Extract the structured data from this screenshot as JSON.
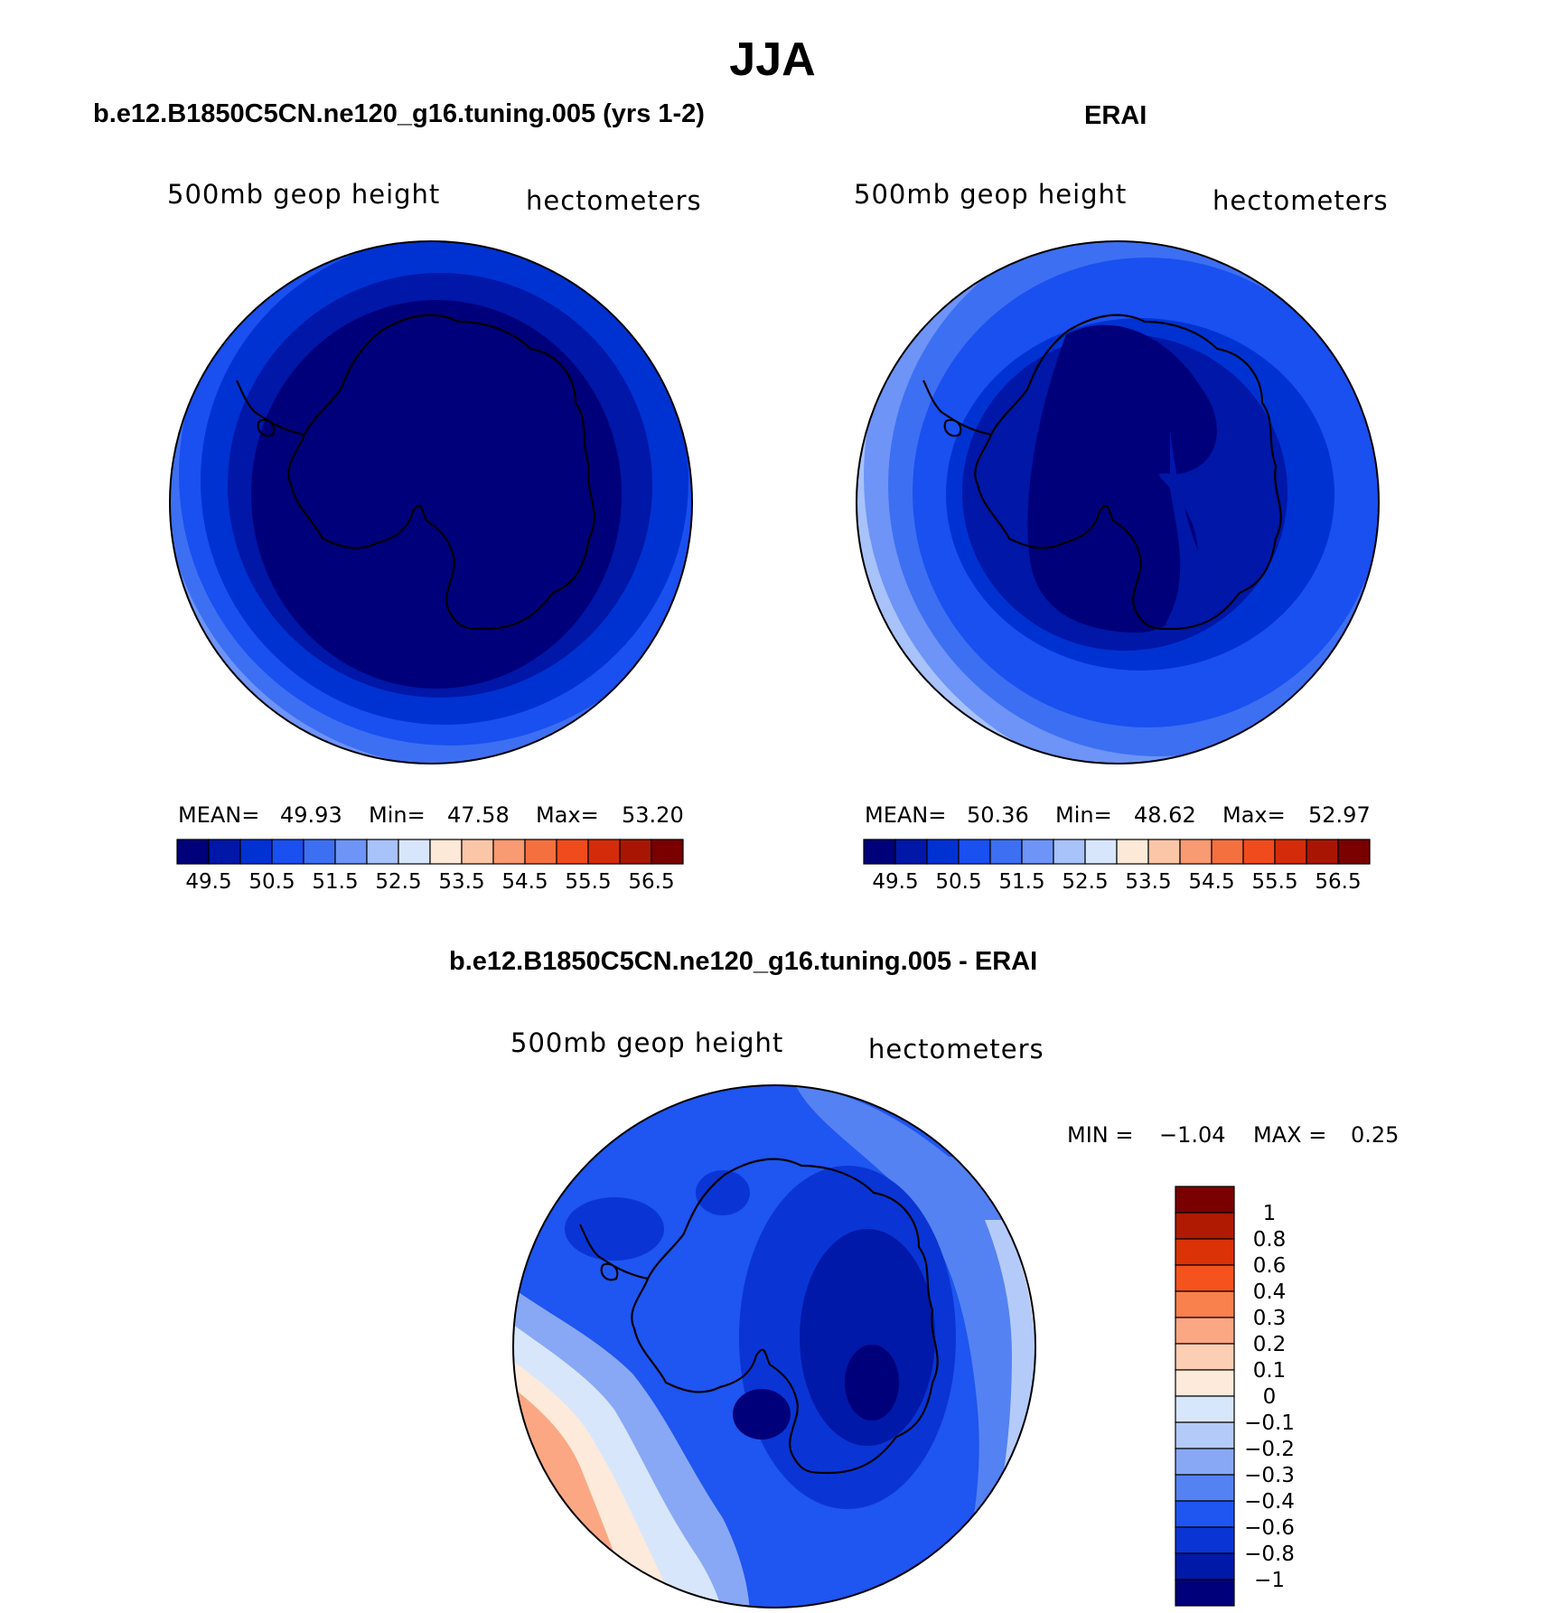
{
  "figure": {
    "title": "JJA"
  },
  "panels": [
    {
      "title": "b.e12.B1850C5CN.ne120_g16.tuning.005 (yrs 1-2)",
      "left_label": "500mb geop height",
      "right_label": "hectometers",
      "stats": {
        "mean_label": "MEAN=",
        "mean": "49.93",
        "min_label": "Min=",
        "min": "47.58",
        "max_label": "Max=",
        "max": "53.20"
      }
    },
    {
      "title": "ERAI",
      "left_label": "500mb geop height",
      "right_label": "hectometers",
      "stats": {
        "mean_label": "MEAN=",
        "mean": "50.36",
        "min_label": "Min=",
        "min": "48.62",
        "max_label": "Max=",
        "max": "52.97"
      }
    },
    {
      "title": "b.e12.B1850C5CN.ne120_g16.tuning.005 - ERAI",
      "left_label": "500mb geop height",
      "right_label": "hectometers",
      "stats": {
        "min_label": "MIN =",
        "min": "−1.04",
        "max_label": "MAX =",
        "max": "0.25"
      }
    }
  ],
  "colorbar_horizontal": {
    "tick_labels": [
      "49.5",
      "50.5",
      "51.5",
      "52.5",
      "53.5",
      "54.5",
      "55.5",
      "56.5"
    ],
    "colors": [
      "#00007a",
      "#0017a8",
      "#0032d2",
      "#1a4ff0",
      "#3d6ff2",
      "#6d94f6",
      "#a8c2fa",
      "#d8e6fb",
      "#fde9d8",
      "#fbc6a8",
      "#f89a72",
      "#f5703f",
      "#f04b1c",
      "#d42c0a",
      "#a81603",
      "#7a0000"
    ]
  },
  "colorbar_vertical": {
    "tick_labels": [
      "1",
      "0.8",
      "0.6",
      "0.4",
      "0.3",
      "0.2",
      "0.1",
      "0",
      "−0.1",
      "−0.2",
      "−0.3",
      "−0.4",
      "−0.6",
      "−0.8",
      "−1"
    ],
    "colors": [
      "#7a0000",
      "#b01a03",
      "#db3207",
      "#f5531e",
      "#f8814d",
      "#fba784",
      "#fccfb4",
      "#fdeada",
      "#d8e6fb",
      "#b4cbfa",
      "#88a8f6",
      "#5482f2",
      "#1f55f0",
      "#0a35d4",
      "#0019a8",
      "#00007a"
    ]
  }
}
